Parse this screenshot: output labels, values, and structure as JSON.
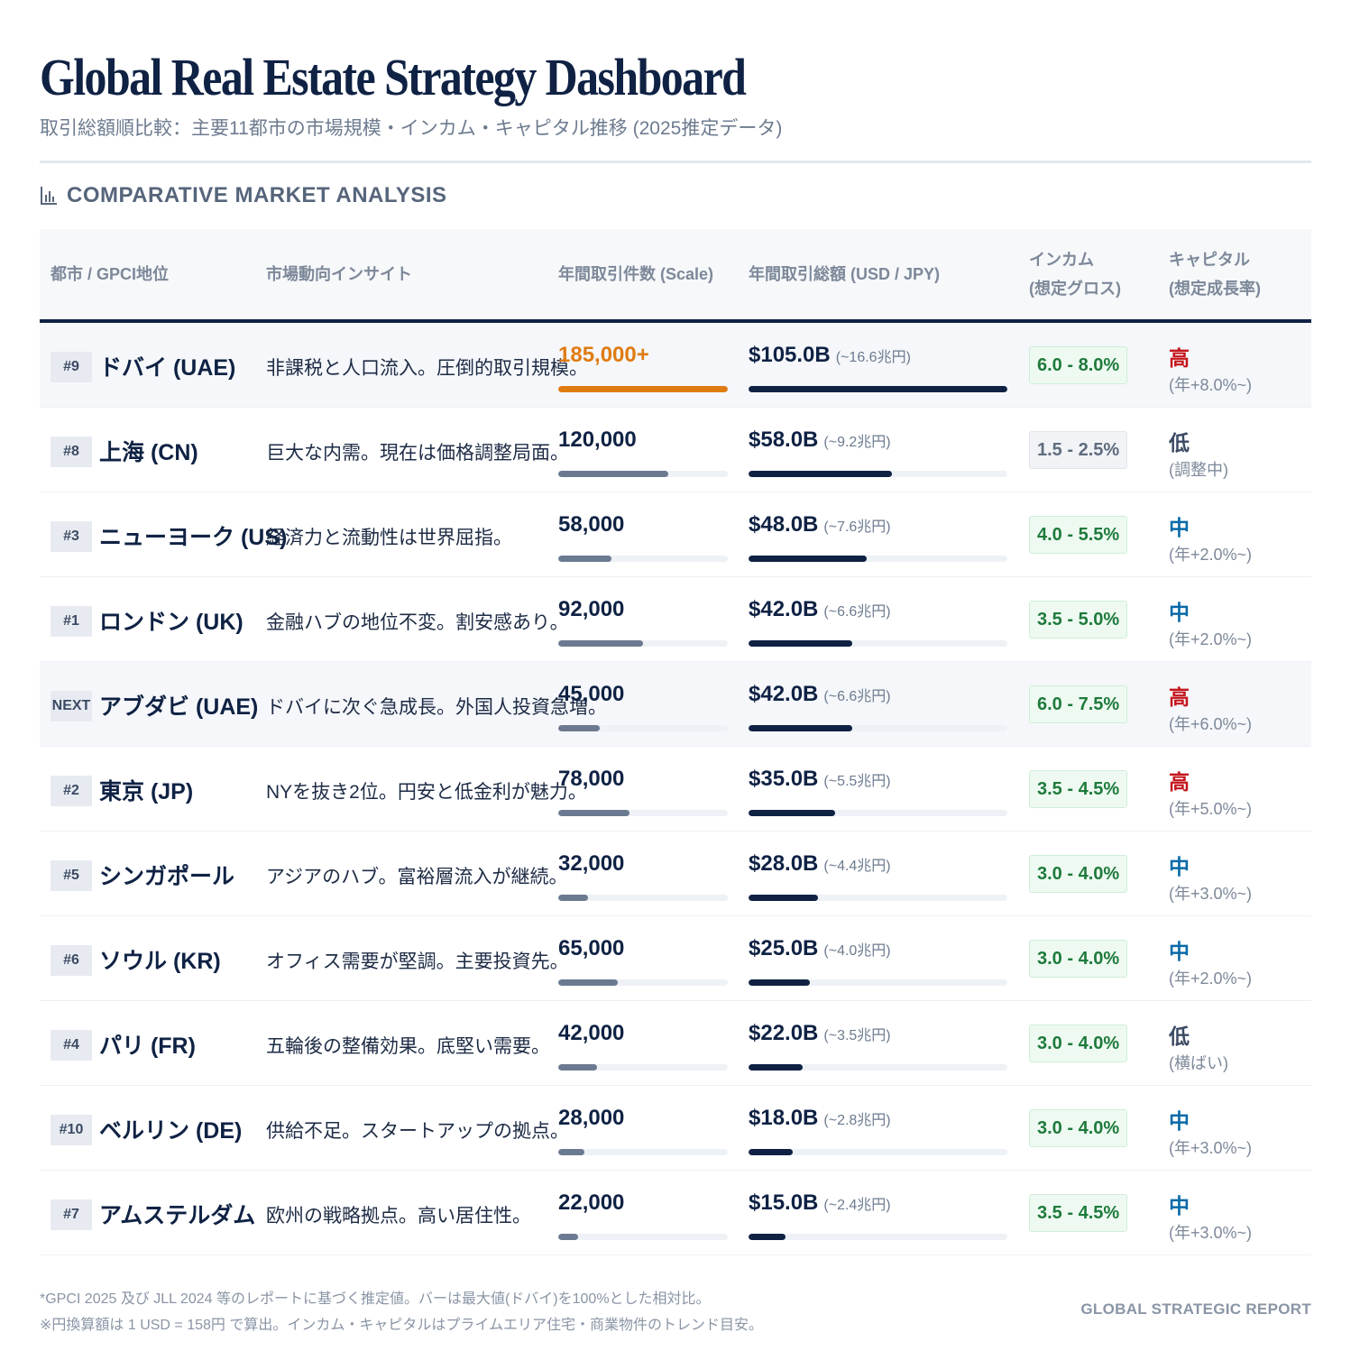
{
  "header": {
    "title": "Global Real Estate Strategy Dashboard",
    "subtitle": "取引総額順比較：主要11都市の市場規模・インカム・キャピタル推移 (2025推定データ)"
  },
  "section": {
    "icon": "bar-chart-icon",
    "title": "COMPARATIVE MARKET ANALYSIS"
  },
  "table": {
    "columns": {
      "city": "都市 / GPCI地位",
      "insight": "市場動向インサイト",
      "count": "年間取引件数 (Scale)",
      "volume": "年間取引総額 (USD / JPY)",
      "income_1": "インカム",
      "income_2": "(想定グロス)",
      "capital_1": "キャピタル",
      "capital_2": "(想定成長率)"
    }
  },
  "colors": {
    "navy": "#0f2244",
    "orange": "#e07b12",
    "slate": "#6b7a90",
    "high": "#c4161c",
    "mid": "#0a6aa8",
    "low": "#3b4a63",
    "yield_green": "#1e7a3c"
  },
  "chart_data": {
    "type": "table",
    "count_max": 185000,
    "volume_max": 105.0,
    "rows": [
      {
        "rank": "#9",
        "city": "ドバイ (UAE)",
        "insight": "非課税と人口流入。圧倒的取引規模。",
        "count_label": "185,000+",
        "count": 185000,
        "volume_usd": "$105.0B",
        "volume_jpy": "(~16.6兆円)",
        "volume": 105.0,
        "income": "6.0 - 8.0%",
        "income_style": "green",
        "capital_level": "高",
        "capital_class": "high",
        "capital_note": "(年+8.0%~)",
        "highlight": true
      },
      {
        "rank": "#8",
        "city": "上海 (CN)",
        "insight": "巨大な内需。現在は価格調整局面。",
        "count_label": "120,000",
        "count": 120000,
        "volume_usd": "$58.0B",
        "volume_jpy": "(~9.2兆円)",
        "volume": 58.0,
        "income": "1.5 - 2.5%",
        "income_style": "gray",
        "capital_level": "低",
        "capital_class": "low",
        "capital_note": "(調整中)",
        "highlight": false
      },
      {
        "rank": "#3",
        "city": "ニューヨーク (US)",
        "insight": "経済力と流動性は世界屈指。",
        "count_label": "58,000",
        "count": 58000,
        "volume_usd": "$48.0B",
        "volume_jpy": "(~7.6兆円)",
        "volume": 48.0,
        "income": "4.0 - 5.5%",
        "income_style": "green",
        "capital_level": "中",
        "capital_class": "mid",
        "capital_note": "(年+2.0%~)",
        "highlight": false
      },
      {
        "rank": "#1",
        "city": "ロンドン (UK)",
        "insight": "金融ハブの地位不変。割安感あり。",
        "count_label": "92,000",
        "count": 92000,
        "volume_usd": "$42.0B",
        "volume_jpy": "(~6.6兆円)",
        "volume": 42.0,
        "income": "3.5 - 5.0%",
        "income_style": "green",
        "capital_level": "中",
        "capital_class": "mid",
        "capital_note": "(年+2.0%~)",
        "highlight": false
      },
      {
        "rank": "NEXT",
        "city": "アブダビ (UAE)",
        "insight": "ドバイに次ぐ急成長。外国人投資急増。",
        "count_label": "45,000",
        "count": 45000,
        "volume_usd": "$42.0B",
        "volume_jpy": "(~6.6兆円)",
        "volume": 42.0,
        "income": "6.0 - 7.5%",
        "income_style": "green",
        "capital_level": "高",
        "capital_class": "high",
        "capital_note": "(年+6.0%~)",
        "highlight": true
      },
      {
        "rank": "#2",
        "city": "東京 (JP)",
        "insight": "NYを抜き2位。円安と低金利が魅力。",
        "count_label": "78,000",
        "count": 78000,
        "volume_usd": "$35.0B",
        "volume_jpy": "(~5.5兆円)",
        "volume": 35.0,
        "income": "3.5 - 4.5%",
        "income_style": "green",
        "capital_level": "高",
        "capital_class": "high",
        "capital_note": "(年+5.0%~)",
        "highlight": false
      },
      {
        "rank": "#5",
        "city": "シンガポール",
        "insight": "アジアのハブ。富裕層流入が継続。",
        "count_label": "32,000",
        "count": 32000,
        "volume_usd": "$28.0B",
        "volume_jpy": "(~4.4兆円)",
        "volume": 28.0,
        "income": "3.0 - 4.0%",
        "income_style": "green",
        "capital_level": "中",
        "capital_class": "mid",
        "capital_note": "(年+3.0%~)",
        "highlight": false
      },
      {
        "rank": "#6",
        "city": "ソウル (KR)",
        "insight": "オフィス需要が堅調。主要投資先。",
        "count_label": "65,000",
        "count": 65000,
        "volume_usd": "$25.0B",
        "volume_jpy": "(~4.0兆円)",
        "volume": 25.0,
        "income": "3.0 - 4.0%",
        "income_style": "green",
        "capital_level": "中",
        "capital_class": "mid",
        "capital_note": "(年+2.0%~)",
        "highlight": false
      },
      {
        "rank": "#4",
        "city": "パリ (FR)",
        "insight": "五輪後の整備効果。底堅い需要。",
        "count_label": "42,000",
        "count": 42000,
        "volume_usd": "$22.0B",
        "volume_jpy": "(~3.5兆円)",
        "volume": 22.0,
        "income": "3.0 - 4.0%",
        "income_style": "green",
        "capital_level": "低",
        "capital_class": "low",
        "capital_note": "(横ばい)",
        "highlight": false
      },
      {
        "rank": "#10",
        "city": "ベルリン (DE)",
        "insight": "供給不足。スタートアップの拠点。",
        "count_label": "28,000",
        "count": 28000,
        "volume_usd": "$18.0B",
        "volume_jpy": "(~2.8兆円)",
        "volume": 18.0,
        "income": "3.0 - 4.0%",
        "income_style": "green",
        "capital_level": "中",
        "capital_class": "mid",
        "capital_note": "(年+3.0%~)",
        "highlight": false
      },
      {
        "rank": "#7",
        "city": "アムステルダム",
        "insight": "欧州の戦略拠点。高い居住性。",
        "count_label": "22,000",
        "count": 22000,
        "volume_usd": "$15.0B",
        "volume_jpy": "(~2.4兆円)",
        "volume": 15.0,
        "income": "3.5 - 4.5%",
        "income_style": "green",
        "capital_level": "中",
        "capital_class": "mid",
        "capital_note": "(年+3.0%~)",
        "highlight": false
      }
    ]
  },
  "footer": {
    "note_1": "*GPCI 2025 及び JLL 2024 等のレポートに基づく推定値。バーは最大値(ドバイ)を100%とした相対比。",
    "note_2": "※円換算額は 1 USD = 158円 で算出。インカム・キャピタルはプライムエリア住宅・商業物件のトレンド目安。",
    "brand": "GLOBAL STRATEGIC REPORT"
  }
}
